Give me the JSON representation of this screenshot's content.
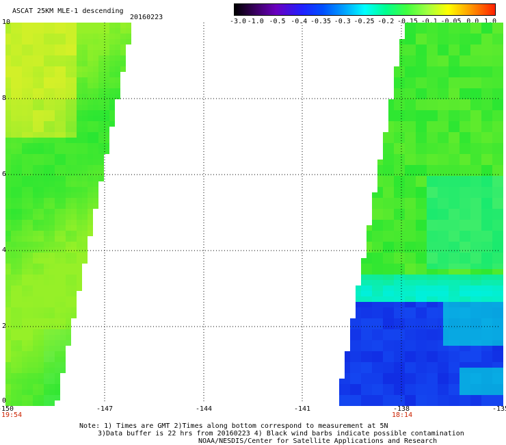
{
  "header": {
    "title": "ASCAT 25KM MLE-1 descending",
    "date": "20160223"
  },
  "colorbar": {
    "ticks": [
      "-3.0",
      "-1.0",
      "-0.5",
      "-0.4",
      "-0.35",
      "-0.3",
      "-0.25",
      "-0.2",
      "-0.15",
      "-0.1",
      "-0.05",
      "0.0",
      "1.0"
    ],
    "stops": [
      "#000000",
      "#3a0060",
      "#6a00c0",
      "#2020ff",
      "#0050ff",
      "#00a0ff",
      "#00ffff",
      "#00ff90",
      "#40ff40",
      "#a0ff40",
      "#ffff00",
      "#ffa000",
      "#ff2000"
    ]
  },
  "map": {
    "lon_range": [
      -150,
      -135
    ],
    "lat_range": [
      0,
      10
    ],
    "y_ticks": [
      "10",
      "8",
      "6",
      "4",
      "2",
      "0"
    ],
    "x_ticks": [
      "-150",
      "-147",
      "-144",
      "-141",
      "-138",
      "-135"
    ],
    "time_labels": {
      "left": "19:54",
      "right": "18:14"
    },
    "grid": "dotted"
  },
  "notes": {
    "line1": "Note: 1) Times are GMT 2)Times along bottom correspond to measurement at 5N",
    "line2": "3)Data buffer is 22 hrs from 20160223 4) Black wind barbs indicate possible contamination",
    "line3": "NOAA/NESDIS/Center for Satellite Applications and Research"
  }
}
